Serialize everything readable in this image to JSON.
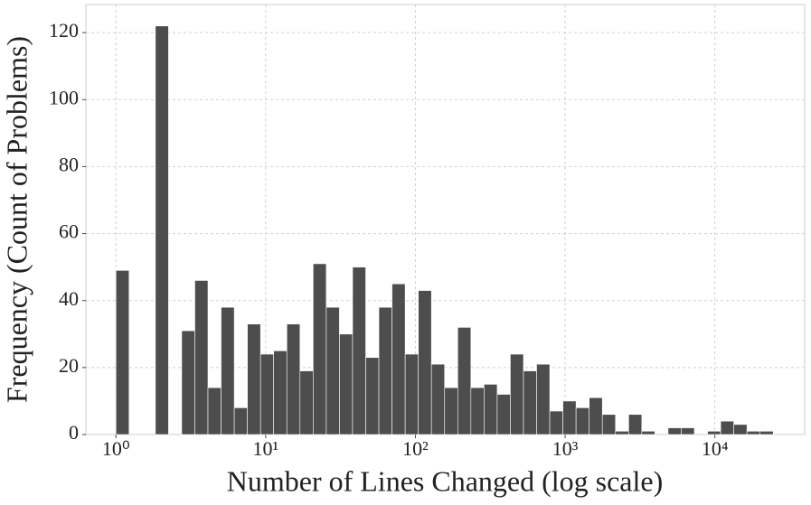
{
  "chart_data": {
    "type": "histogram",
    "xlabel": "Number of Lines Changed (log scale)",
    "ylabel": "Frequency (Count of Problems)",
    "bins": [
      1,
      1.224,
      1.498,
      1.834,
      2.245,
      2.748,
      3.364,
      4.117,
      5.04,
      6.169,
      7.551,
      9.244,
      11.31,
      13.85,
      16.95,
      20.75,
      25.4,
      31.09,
      38.06,
      46.59,
      57.02,
      69.8,
      85.45,
      104.6,
      128,
      156.7,
      191.8,
      234.8,
      287.4,
      351.8,
      430.5,
      527,
      645.1,
      789.7,
      966.5,
      1183,
      1448,
      1773,
      2170,
      2656,
      3251,
      3980,
      4871,
      5963,
      7299,
      8933,
      10935,
      13385,
      16384,
      20055,
      24547
    ],
    "values": [
      49,
      0,
      0,
      122,
      0,
      31,
      46,
      14,
      38,
      8,
      33,
      24,
      25,
      33,
      19,
      51,
      38,
      30,
      50,
      23,
      38,
      45,
      24,
      43,
      21,
      14,
      32,
      14,
      15,
      12,
      24,
      19,
      21,
      7,
      10,
      8,
      11,
      6,
      1,
      6,
      1,
      0,
      2,
      2,
      0,
      1,
      4,
      3,
      1,
      1
    ],
    "color": "#4d4d4d",
    "xscale": "log",
    "xlim": [
      0.63,
      39800
    ],
    "xticks": [
      {
        "value": 1,
        "label": "10⁰"
      },
      {
        "value": 10,
        "label": "10¹"
      },
      {
        "value": 100,
        "label": "10²"
      },
      {
        "value": 1000,
        "label": "10³"
      },
      {
        "value": 10000,
        "label": "10⁴"
      }
    ],
    "ylim": [
      0,
      128.4
    ],
    "yticks": [
      0,
      20,
      40,
      60,
      80,
      100,
      120
    ],
    "grid": true
  }
}
